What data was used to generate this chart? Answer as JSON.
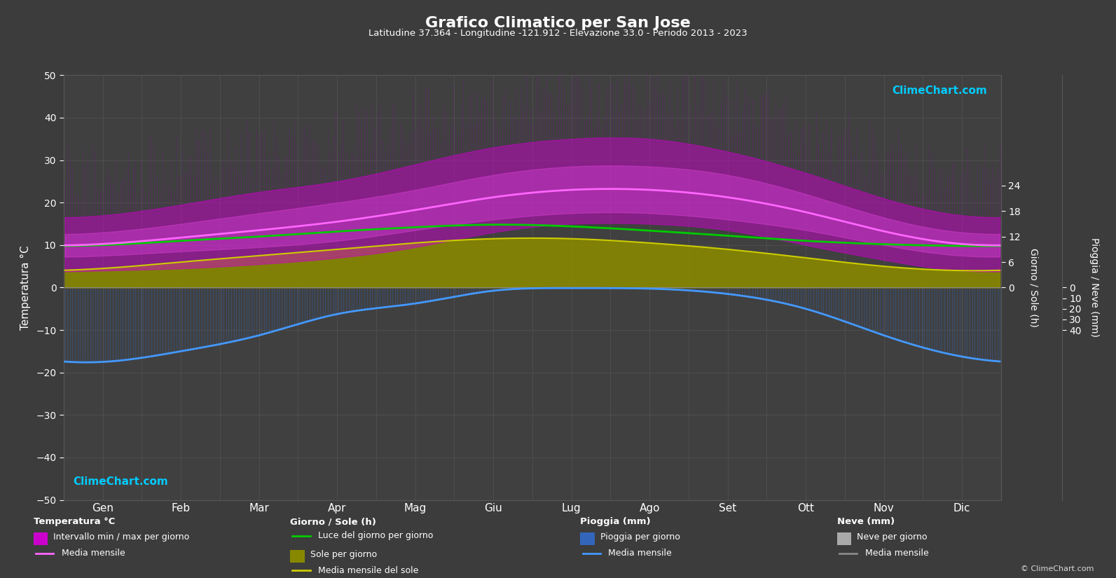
{
  "title": "Grafico Climatico per San Jose",
  "subtitle": "Latitudine 37.364 - Longitudine -121.912 - Elevazione 33.0 - Periodo 2013 - 2023",
  "bg_color": "#3c3c3c",
  "plot_bg_color": "#404040",
  "text_color": "#ffffff",
  "grid_color": "#585858",
  "months": [
    "Gen",
    "Feb",
    "Mar",
    "Apr",
    "Mag",
    "Giu",
    "Lug",
    "Ago",
    "Set",
    "Ott",
    "Nov",
    "Dic"
  ],
  "temp_ylim": [
    -50,
    50
  ],
  "temp_min_monthly": [
    7.5,
    8.5,
    9.5,
    11.0,
    13.5,
    16.0,
    17.5,
    17.5,
    16.0,
    13.5,
    10.0,
    7.5
  ],
  "temp_max_monthly": [
    13.0,
    15.0,
    17.5,
    20.0,
    23.0,
    26.5,
    28.5,
    28.5,
    26.5,
    22.0,
    16.5,
    13.0
  ],
  "temp_min_daily": [
    4.0,
    4.5,
    5.5,
    7.0,
    9.5,
    13.0,
    15.0,
    15.0,
    13.5,
    10.0,
    6.5,
    4.0
  ],
  "temp_max_daily": [
    17.0,
    19.5,
    22.5,
    25.0,
    29.0,
    33.0,
    35.0,
    35.0,
    32.0,
    27.0,
    21.0,
    17.0
  ],
  "daylight_hours": [
    10.0,
    11.0,
    12.0,
    13.2,
    14.2,
    14.8,
    14.4,
    13.4,
    12.2,
    11.0,
    10.2,
    9.8
  ],
  "sunshine_hours": [
    4.5,
    6.0,
    7.5,
    9.0,
    10.5,
    11.5,
    11.5,
    10.5,
    9.0,
    7.0,
    5.0,
    4.0
  ],
  "rainfall_mm": [
    70,
    60,
    45,
    25,
    15,
    3,
    0.5,
    1,
    6,
    20,
    45,
    65
  ],
  "snowfall_mm": [
    0,
    0,
    0,
    0,
    0,
    0,
    0,
    0,
    0,
    0,
    0,
    0
  ],
  "days_per_month": [
    31,
    28,
    31,
    30,
    31,
    30,
    31,
    31,
    30,
    31,
    30,
    31
  ],
  "sun_ylim_max": 24,
  "rain_ylim_max": 40,
  "temp_to_sun_scale": 2.0833,
  "temp_to_rain_scale": 1.25
}
